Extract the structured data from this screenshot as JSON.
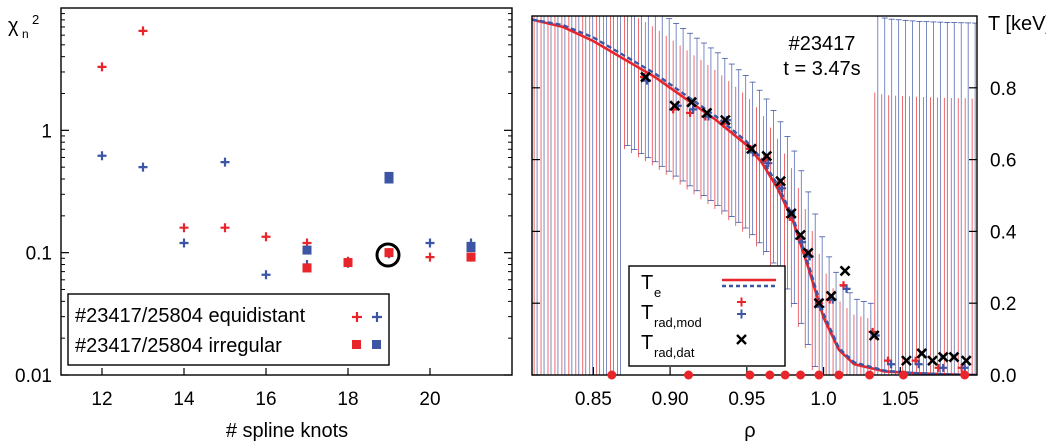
{
  "colors": {
    "red": "#e8252b",
    "blue": "#3d55a5",
    "black": "#000000"
  },
  "chart_data": [
    {
      "type": "scatter",
      "title": "",
      "xlabel": "# spline knots",
      "ylabel_main": "χ",
      "ylabel_sub": "n",
      "ylabel_sup": "2",
      "xscale": "linear",
      "yscale": "log",
      "xlim": [
        11,
        22
      ],
      "ylim": [
        0.01,
        10
      ],
      "xticks": [
        12,
        14,
        16,
        18,
        20
      ],
      "xtick_labels": [
        "12",
        "14",
        "16",
        "18",
        "20"
      ],
      "yticks": [
        0.01,
        0.1,
        1
      ],
      "ytick_labels": [
        "0.01",
        "0.1",
        "1"
      ],
      "legend_position": "bottom-left",
      "legend": [
        {
          "label": "#23417/25804 equidistant",
          "marker": "plus"
        },
        {
          "label": "#23417/25804 irregular",
          "marker": "square"
        }
      ],
      "series": [
        {
          "color": "red",
          "marker": "plus",
          "x": [
            12,
            13,
            14,
            15,
            16,
            17,
            18,
            19,
            20,
            21
          ],
          "y": [
            3.3,
            6.5,
            0.16,
            0.16,
            0.135,
            0.12,
            0.085,
            0.1,
            0.092,
            0.092
          ]
        },
        {
          "color": "blue",
          "marker": "plus",
          "x": [
            12,
            13,
            14,
            15,
            16,
            17,
            18,
            19,
            20,
            21
          ],
          "y": [
            0.62,
            0.5,
            0.12,
            0.55,
            0.066,
            0.08,
            0.082,
            0.098,
            0.12,
            0.12
          ]
        },
        {
          "color": "red",
          "marker": "square",
          "x": [
            17,
            18,
            19,
            21
          ],
          "y": [
            0.075,
            0.083,
            0.1,
            0.092
          ]
        },
        {
          "color": "blue",
          "marker": "square",
          "x": [
            17,
            19,
            19,
            21
          ],
          "y": [
            0.105,
            0.4,
            0.42,
            0.11
          ]
        }
      ],
      "highlight": {
        "x": 19,
        "y": 0.1
      }
    },
    {
      "type": "line",
      "title": "#23417",
      "subtitle": "t = 3.47s",
      "xlabel": "ρ",
      "ylabel": "T [keV]",
      "xlim": [
        0.81,
        1.1
      ],
      "ylim": [
        0,
        1
      ],
      "xticks": [
        0.85,
        0.9,
        0.95,
        1.0,
        1.05
      ],
      "xtick_labels": [
        "0.85",
        "0.90",
        "0.95",
        "1.0",
        "1.05"
      ],
      "yticks": [
        0,
        0.2,
        0.4,
        0.6,
        0.8
      ],
      "ytick_labels": [
        "0.0",
        "0.2",
        "0.4",
        "0.6",
        "0.8"
      ],
      "legend_position": "bottom-right",
      "legend": [
        {
          "main": "T",
          "sub": "e",
          "marker": "lines"
        },
        {
          "main": "T",
          "sub": "rad,mod",
          "marker": "plus"
        },
        {
          "main": "T",
          "sub": "rad,dat",
          "marker": "cross"
        }
      ],
      "te_curve": {
        "x": [
          0.81,
          0.83,
          0.85,
          0.87,
          0.89,
          0.91,
          0.93,
          0.95,
          0.96,
          0.97,
          0.98,
          0.99,
          1.0,
          1.01,
          1.02,
          1.04,
          1.06,
          1.08,
          1.1
        ],
        "y_red": [
          0.99,
          0.97,
          0.93,
          0.88,
          0.83,
          0.77,
          0.71,
          0.64,
          0.59,
          0.52,
          0.43,
          0.3,
          0.16,
          0.07,
          0.03,
          0.01,
          0.005,
          0.002,
          0.0
        ],
        "y_blue": [
          0.99,
          0.975,
          0.94,
          0.89,
          0.84,
          0.78,
          0.72,
          0.65,
          0.6,
          0.53,
          0.44,
          0.31,
          0.17,
          0.075,
          0.035,
          0.012,
          0.005,
          0.002,
          0.0
        ]
      },
      "band": {
        "red_upper": 0.55,
        "blue_upper": 0.7
      },
      "rad_mod_red": {
        "x": [
          0.883,
          0.902,
          0.913,
          0.923,
          0.935,
          0.952,
          0.962,
          0.971,
          0.978,
          0.984,
          0.989,
          0.997,
          1.004,
          1.013,
          1.032,
          1.042,
          1.06,
          1.075,
          1.09
        ],
        "y": [
          0.83,
          0.74,
          0.73,
          0.72,
          0.7,
          0.63,
          0.6,
          0.53,
          0.44,
          0.38,
          0.34,
          0.2,
          0.21,
          0.25,
          0.12,
          0.04,
          0.04,
          0.02,
          0.02
        ]
      },
      "rad_mod_blue": {
        "x": [
          0.885,
          0.905,
          0.915,
          0.925,
          0.937,
          0.954,
          0.964,
          0.973,
          0.979,
          0.986,
          0.991,
          0.998,
          1.006,
          1.015,
          1.034,
          1.044,
          1.062,
          1.078,
          1.092
        ],
        "y": [
          0.82,
          0.75,
          0.74,
          0.72,
          0.71,
          0.62,
          0.59,
          0.52,
          0.45,
          0.37,
          0.33,
          0.19,
          0.21,
          0.24,
          0.11,
          0.03,
          0.03,
          0.02,
          0.02
        ]
      },
      "rad_dat": {
        "x": [
          0.884,
          0.903,
          0.914,
          0.924,
          0.936,
          0.953,
          0.963,
          0.972,
          0.979,
          0.985,
          0.99,
          0.997,
          1.005,
          1.014,
          1.033,
          1.054,
          1.064,
          1.071,
          1.078,
          1.085,
          1.093
        ],
        "y": [
          0.83,
          0.75,
          0.76,
          0.73,
          0.71,
          0.63,
          0.61,
          0.54,
          0.45,
          0.39,
          0.34,
          0.2,
          0.22,
          0.29,
          0.11,
          0.04,
          0.06,
          0.04,
          0.05,
          0.05,
          0.04
        ]
      },
      "knots_x": [
        0.862,
        0.912,
        0.952,
        0.965,
        0.975,
        0.985,
        0.997,
        1.01,
        1.03,
        1.052,
        1.092
      ]
    }
  ]
}
